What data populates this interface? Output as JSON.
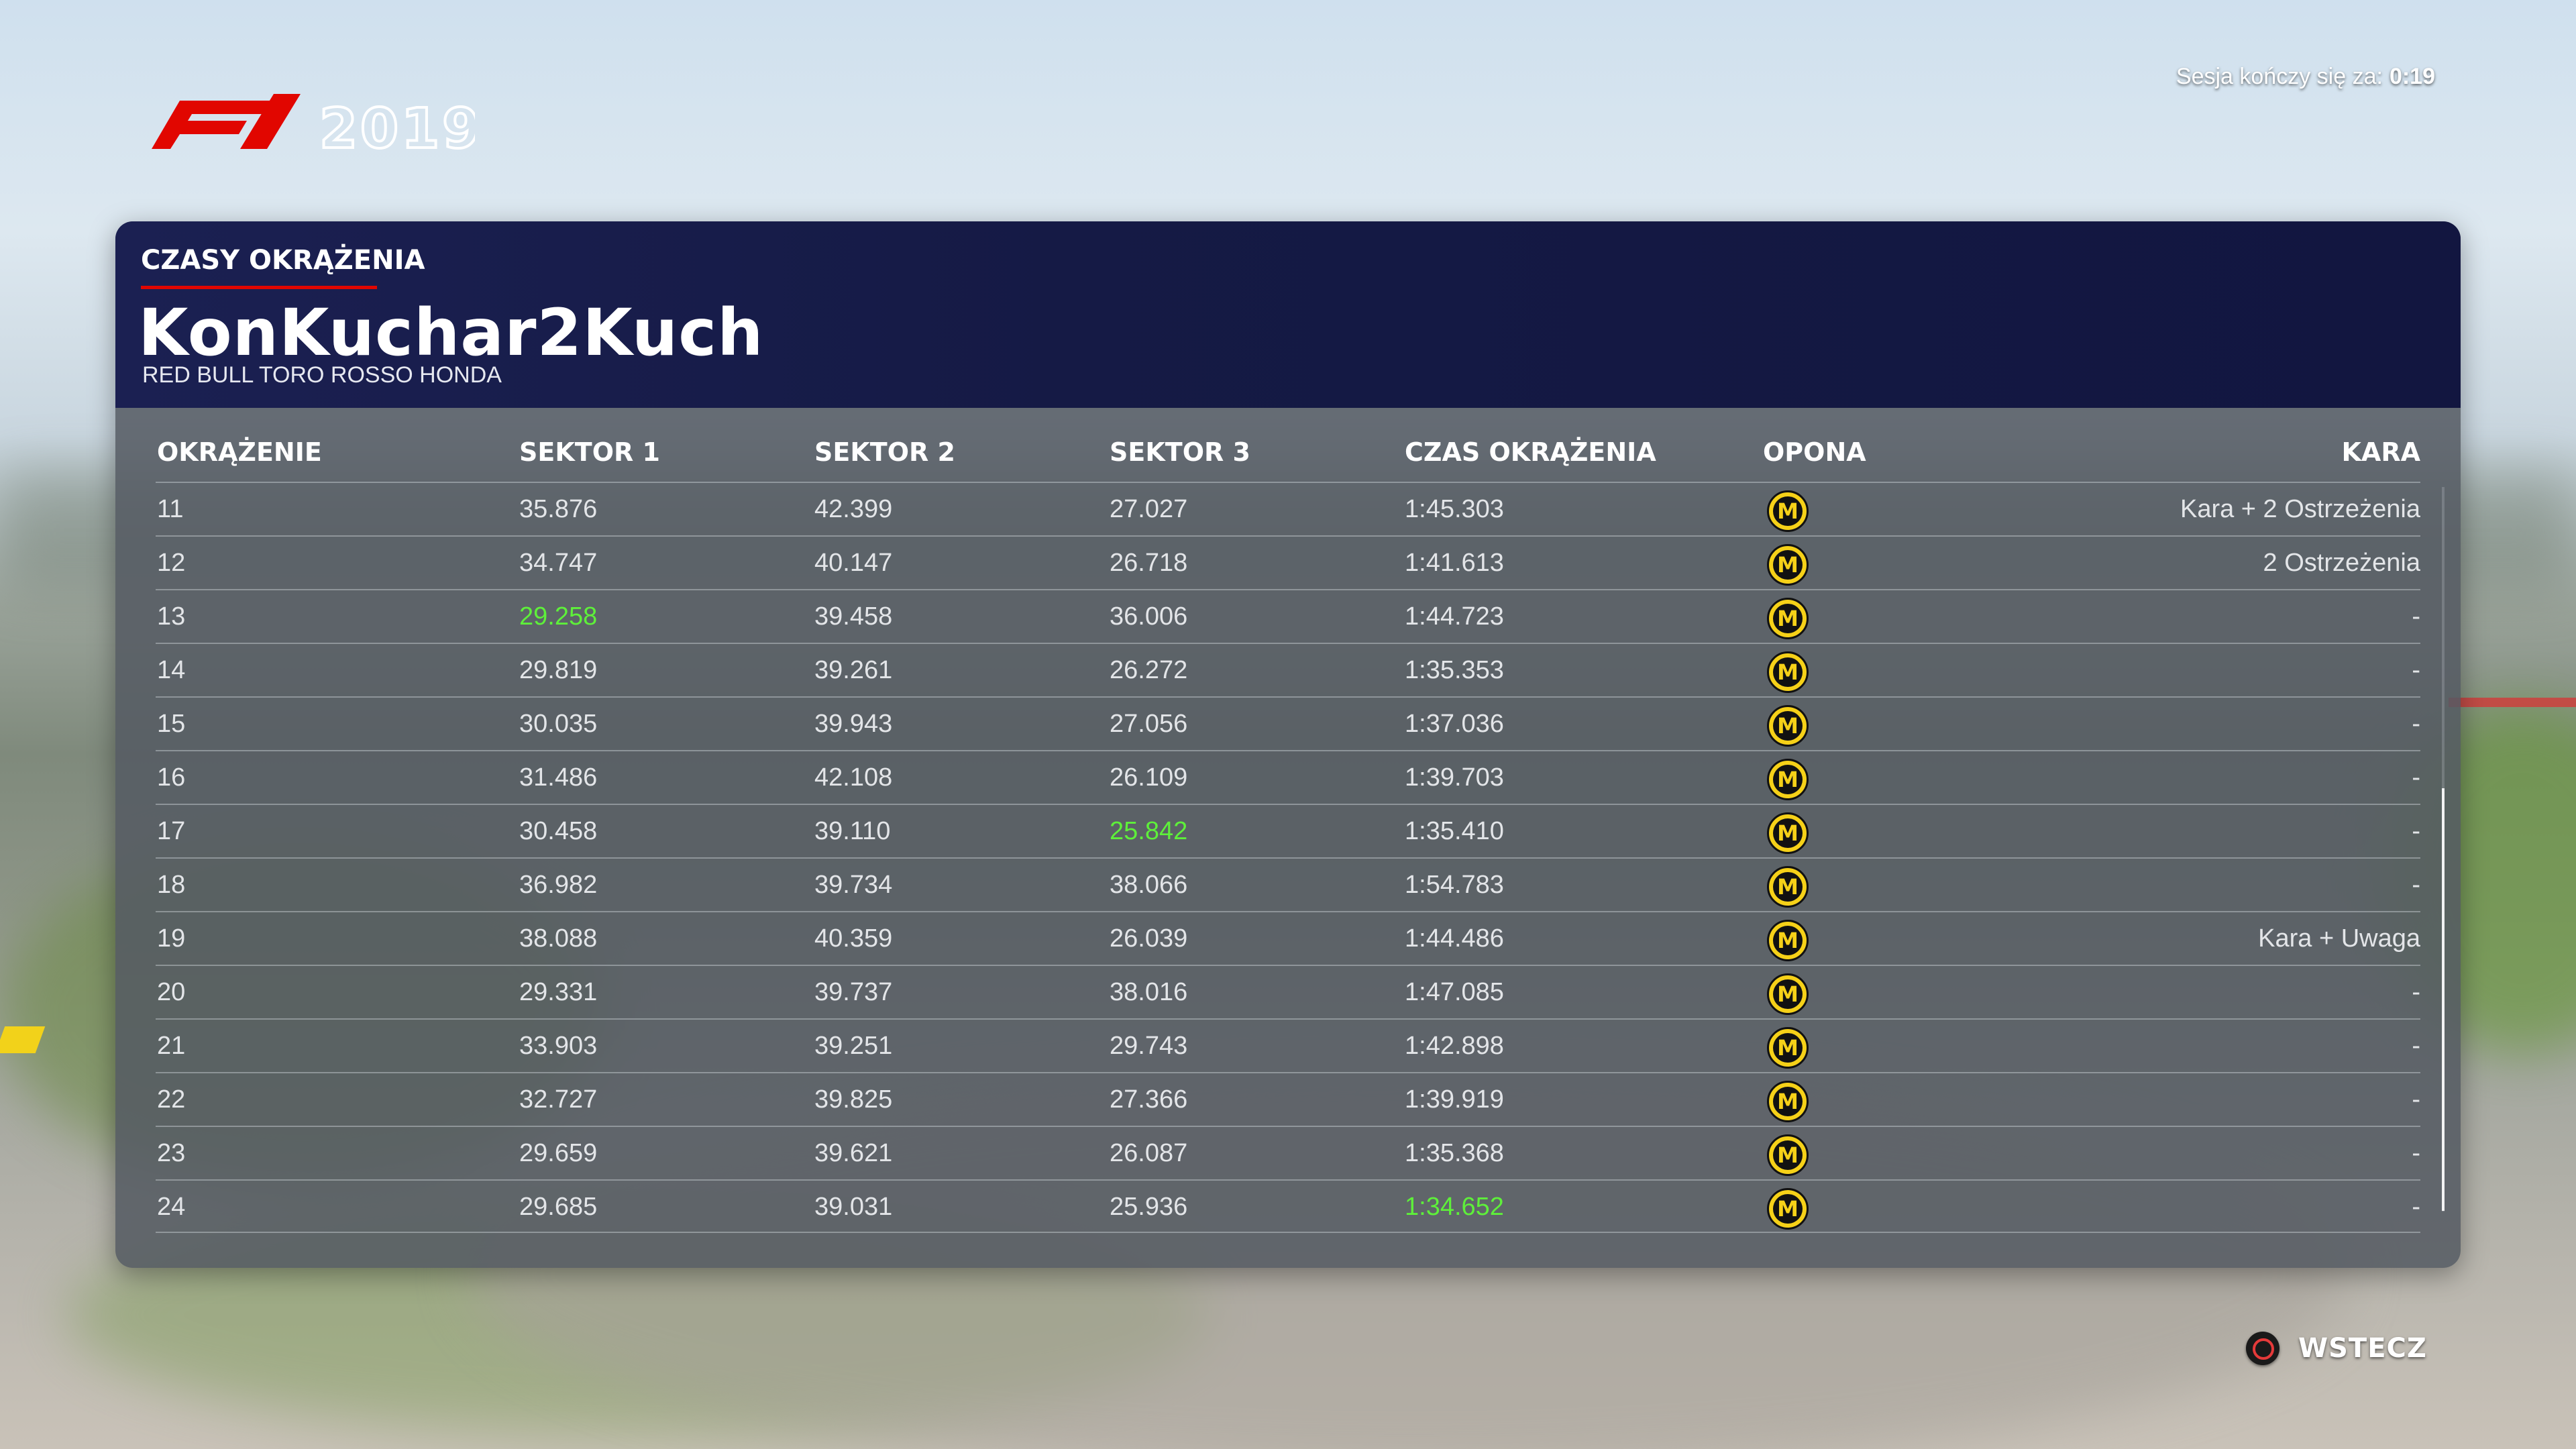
{
  "header": {
    "logo_text": "F1 2019",
    "session_label": "Sesja kończy się za:",
    "session_time": "0:19"
  },
  "panel": {
    "section_title": "CZASY OKRĄŻENIA",
    "driver_name": "KonKuchar2Kuch",
    "team_name": "RED BULL TORO ROSSO HONDA"
  },
  "colors": {
    "accent_red": "#e10600",
    "fastest_green": "#5ef03a",
    "tyre_medium_yellow": "#f6d118",
    "header_navy": "#151a45"
  },
  "table": {
    "columns": {
      "lap": "OKRĄŻENIE",
      "s1": "SEKTOR 1",
      "s2": "SEKTOR 2",
      "s3": "SEKTOR 3",
      "lap_time": "CZAS OKRĄŻENIA",
      "tyre": "OPONA",
      "penalty": "KARA"
    },
    "rows": [
      {
        "lap": "11",
        "s1": "35.876",
        "s2": "42.399",
        "s3": "27.027",
        "lap_time": "1:45.303",
        "tyre": "M",
        "penalty": "Kara + 2 Ostrzeżenia"
      },
      {
        "lap": "12",
        "s1": "34.747",
        "s2": "40.147",
        "s3": "26.718",
        "lap_time": "1:41.613",
        "tyre": "M",
        "penalty": "2 Ostrzeżenia"
      },
      {
        "lap": "13",
        "s1": "29.258",
        "s2": "39.458",
        "s3": "36.006",
        "lap_time": "1:44.723",
        "tyre": "M",
        "penalty": "-",
        "fastest": [
          "s1"
        ]
      },
      {
        "lap": "14",
        "s1": "29.819",
        "s2": "39.261",
        "s3": "26.272",
        "lap_time": "1:35.353",
        "tyre": "M",
        "penalty": "-"
      },
      {
        "lap": "15",
        "s1": "30.035",
        "s2": "39.943",
        "s3": "27.056",
        "lap_time": "1:37.036",
        "tyre": "M",
        "penalty": "-"
      },
      {
        "lap": "16",
        "s1": "31.486",
        "s2": "42.108",
        "s3": "26.109",
        "lap_time": "1:39.703",
        "tyre": "M",
        "penalty": "-"
      },
      {
        "lap": "17",
        "s1": "30.458",
        "s2": "39.110",
        "s3": "25.842",
        "lap_time": "1:35.410",
        "tyre": "M",
        "penalty": "-",
        "fastest": [
          "s3"
        ]
      },
      {
        "lap": "18",
        "s1": "36.982",
        "s2": "39.734",
        "s3": "38.066",
        "lap_time": "1:54.783",
        "tyre": "M",
        "penalty": "-"
      },
      {
        "lap": "19",
        "s1": "38.088",
        "s2": "40.359",
        "s3": "26.039",
        "lap_time": "1:44.486",
        "tyre": "M",
        "penalty": "Kara + Uwaga"
      },
      {
        "lap": "20",
        "s1": "29.331",
        "s2": "39.737",
        "s3": "38.016",
        "lap_time": "1:47.085",
        "tyre": "M",
        "penalty": "-"
      },
      {
        "lap": "21",
        "s1": "33.903",
        "s2": "39.251",
        "s3": "29.743",
        "lap_time": "1:42.898",
        "tyre": "M",
        "penalty": "-"
      },
      {
        "lap": "22",
        "s1": "32.727",
        "s2": "39.825",
        "s3": "27.366",
        "lap_time": "1:39.919",
        "tyre": "M",
        "penalty": "-"
      },
      {
        "lap": "23",
        "s1": "29.659",
        "s2": "39.621",
        "s3": "26.087",
        "lap_time": "1:35.368",
        "tyre": "M",
        "penalty": "-"
      },
      {
        "lap": "24",
        "s1": "29.685",
        "s2": "39.031",
        "s3": "25.936",
        "lap_time": "1:34.652",
        "tyre": "M",
        "penalty": "-",
        "fastest": [
          "lap_time"
        ]
      }
    ]
  },
  "footer": {
    "back_label": "WSTECZ",
    "back_icon": "circle-button-icon"
  }
}
